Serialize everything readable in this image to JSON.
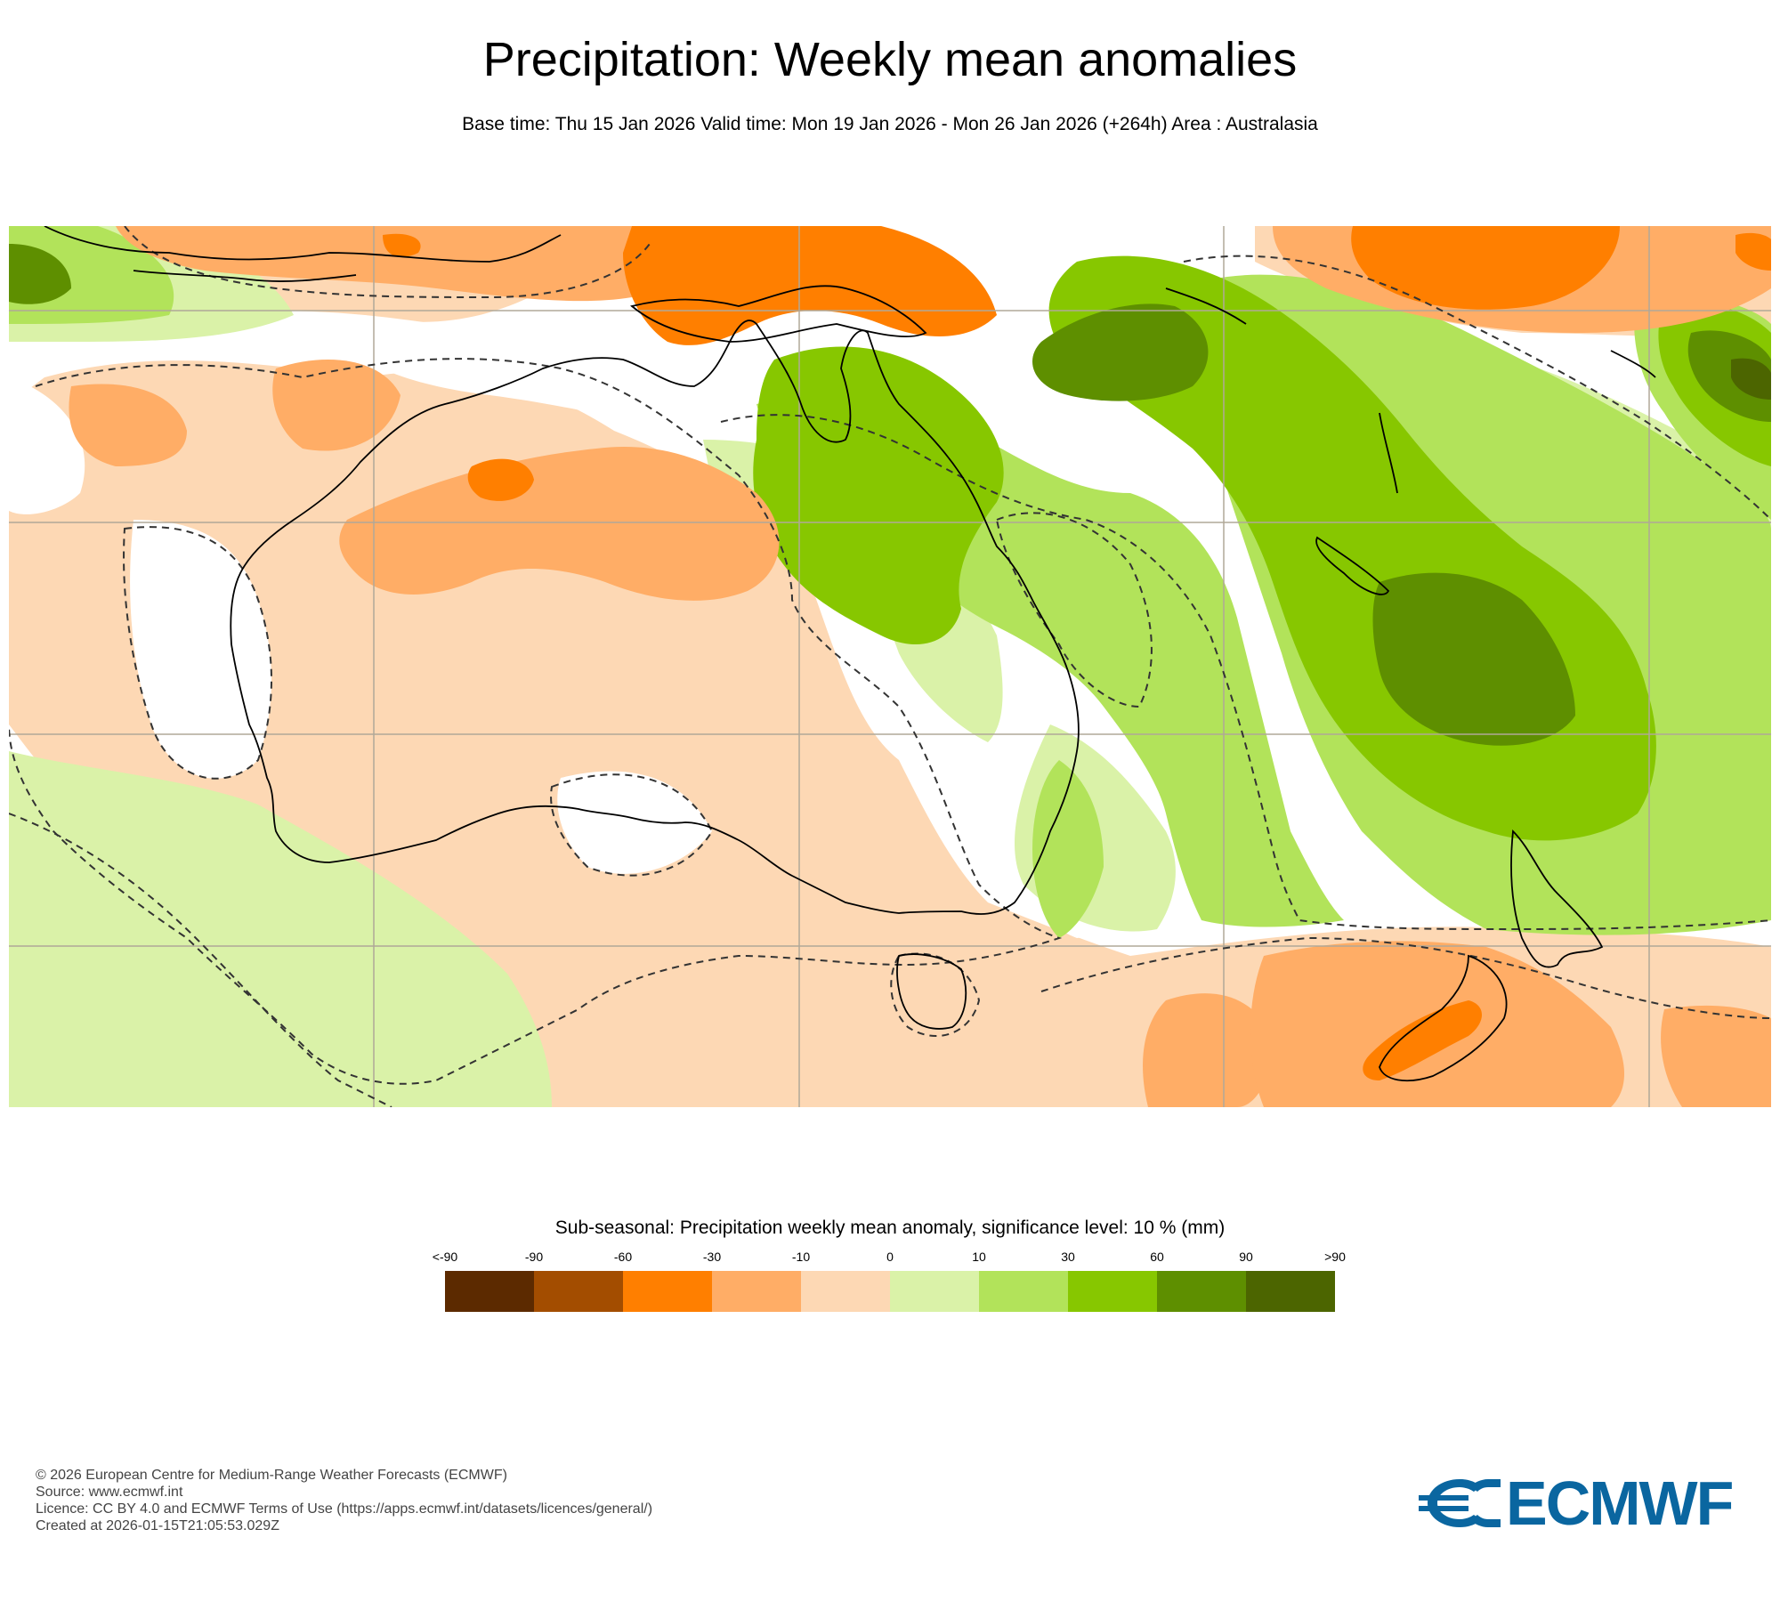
{
  "header": {
    "title": "Precipitation: Weekly mean anomalies",
    "subtitle": "Base time: Thu 15 Jan 2026 Valid time: Mon 19 Jan 2026 - Mon 26 Jan 2026 (+264h) Area : Australasia"
  },
  "legend": {
    "title": "Sub-seasonal: Precipitation weekly mean anomaly, significance level: 10 % (mm)",
    "ticks": [
      "<-90",
      "-90",
      "-60",
      "-30",
      "-10",
      "0",
      "10",
      "30",
      "60",
      "90",
      ">90"
    ],
    "colors": [
      "#5c2a00",
      "#a34d00",
      "#ff7f00",
      "#ffad66",
      "#fdd8b4",
      "#daf2a8",
      "#b2e35a",
      "#87c700",
      "#5e8f00",
      "#4c6500"
    ]
  },
  "map": {
    "area": "Australasia",
    "background_color": "#ffffff",
    "coastline_color": "#000000",
    "significance_contour": "dashed"
  },
  "credits": {
    "copyright": "© 2026 European Centre for Medium-Range Weather Forecasts (ECMWF)",
    "source": "Source: www.ecmwf.int",
    "licence": "Licence: CC BY 4.0 and ECMWF Terms of Use (https://apps.ecmwf.int/datasets/licences/general/)",
    "created": "Created at 2026-01-15T21:05:53.029Z"
  },
  "logo": {
    "text": "ECMWF",
    "color": "#0a66a0"
  }
}
